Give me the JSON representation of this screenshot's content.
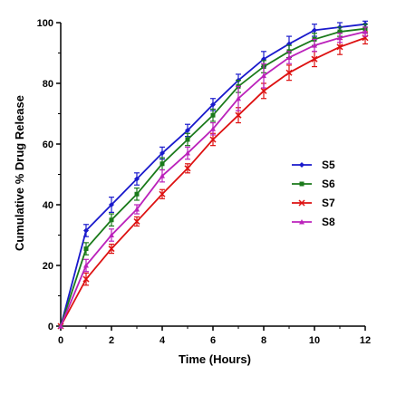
{
  "chart_data": {
    "type": "line",
    "title": "",
    "xlabel": "Time (Hours)",
    "ylabel": "Cumulative % Drug Release",
    "xlim": [
      0,
      12
    ],
    "ylim": [
      0,
      100
    ],
    "x_ticks": [
      "0",
      "2",
      "4",
      "6",
      "8",
      "10",
      "12"
    ],
    "y_ticks": [
      "0",
      "20",
      "40",
      "60",
      "80",
      "100"
    ],
    "grid": false,
    "legend_position": "right",
    "x": [
      0,
      1,
      2,
      3,
      4,
      5,
      6,
      7,
      8,
      9,
      10,
      11,
      12
    ],
    "series": [
      {
        "name": "S5",
        "color": "#1a1acc",
        "marker": "diamond",
        "values": [
          0,
          31.5,
          40,
          48.5,
          57,
          64.5,
          73,
          81,
          88,
          93,
          97.5,
          98.5,
          99.5
        ],
        "errors": [
          0,
          2,
          2.5,
          2,
          2,
          2,
          2,
          2,
          2.5,
          2.5,
          2,
          1.5,
          1
        ]
      },
      {
        "name": "S6",
        "color": "#1a7a1a",
        "marker": "square",
        "values": [
          0,
          25.5,
          35,
          43.5,
          53.5,
          61.5,
          69.5,
          79,
          85.5,
          90.5,
          94.5,
          97,
          98
        ],
        "errors": [
          0,
          2,
          2,
          2,
          2,
          2,
          2,
          2,
          2,
          2,
          2,
          1.5,
          1.5
        ]
      },
      {
        "name": "S7",
        "color": "#dd1111",
        "marker": "x",
        "values": [
          0,
          15.5,
          25.5,
          34.5,
          43.5,
          52,
          61.5,
          69.5,
          77.5,
          83.5,
          88,
          92,
          95
        ],
        "errors": [
          0,
          2,
          1.5,
          1.5,
          1.5,
          1.5,
          2,
          2.5,
          2.5,
          2.5,
          2.5,
          2.5,
          2
        ]
      },
      {
        "name": "S8",
        "color": "#bb22bb",
        "marker": "triangle",
        "values": [
          0,
          20,
          30,
          38.5,
          49.5,
          57,
          65,
          75,
          82.5,
          88.5,
          92.5,
          95,
          97
        ],
        "errors": [
          0,
          2,
          2,
          1.5,
          2,
          2,
          2,
          4,
          4,
          2,
          2,
          1.5,
          1.5
        ]
      }
    ]
  }
}
